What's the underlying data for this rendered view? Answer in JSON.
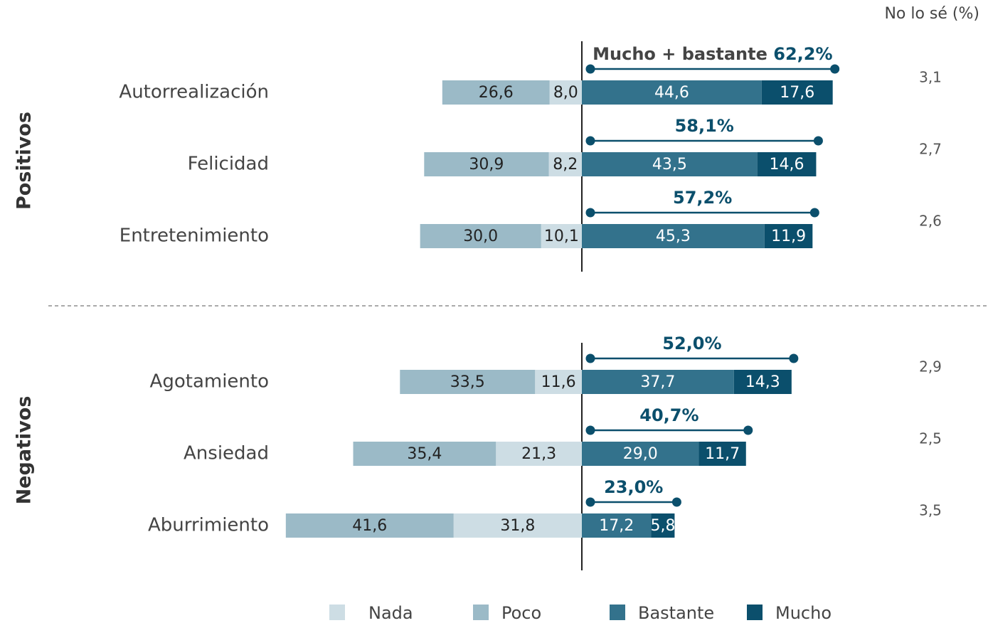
{
  "chart_data": {
    "type": "diverging-bar",
    "categories": [
      "Autorrealización",
      "Felicidad",
      "Entretenimiento",
      "Agotamiento",
      "Ansiedad",
      "Aburrimiento"
    ],
    "groups": [
      {
        "name": "Positivos",
        "size": 3
      },
      {
        "name": "Negativos",
        "size": 3
      }
    ],
    "series": [
      {
        "name": "Nada",
        "color": "#cddde4",
        "side": "left",
        "values": [
          8.0,
          8.2,
          10.1,
          11.6,
          21.3,
          31.8
        ],
        "value_labels": [
          "8,0",
          "8,2",
          "10,1",
          "11,6",
          "21,3",
          "31,8"
        ]
      },
      {
        "name": "Poco",
        "color": "#9bbac7",
        "side": "left",
        "values": [
          26.6,
          30.9,
          30.0,
          33.5,
          35.4,
          41.6
        ],
        "value_labels": [
          "26,6",
          "30,9",
          "30,0",
          "33,5",
          "35,4",
          "41,6"
        ]
      },
      {
        "name": "Bastante",
        "color": "#33728c",
        "side": "right",
        "values": [
          44.6,
          43.5,
          45.3,
          37.7,
          29.0,
          17.2
        ],
        "value_labels": [
          "44,6",
          "43,5",
          "45,3",
          "37,7",
          "29,0",
          "17,2"
        ]
      },
      {
        "name": "Mucho",
        "color": "#0b4f6c",
        "side": "right",
        "values": [
          17.6,
          14.6,
          11.9,
          14.3,
          11.7,
          5.8
        ],
        "value_labels": [
          "17,6",
          "14,6",
          "11,9",
          "14,3",
          "11,7",
          "5,8"
        ]
      }
    ],
    "totals": {
      "label": "Mucho + bastante",
      "color": "#0b4f6c",
      "values": [
        62.2,
        58.1,
        57.2,
        52.0,
        40.7,
        23.0
      ],
      "value_labels": [
        "62,2%",
        "58,1%",
        "57,2%",
        "52,0%",
        "40,7%",
        "23,0%"
      ]
    },
    "unknown": {
      "title": "No lo sé (%)",
      "values": [
        3.1,
        2.7,
        2.6,
        2.9,
        2.5,
        3.5
      ],
      "value_labels": [
        "3,1",
        "2,7",
        "2,6",
        "2,9",
        "2,5",
        "3,5"
      ]
    }
  }
}
